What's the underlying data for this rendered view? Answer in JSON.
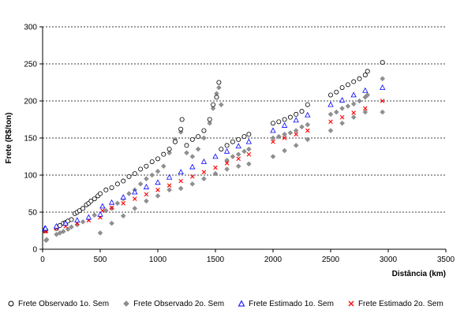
{
  "chart_data": {
    "type": "scatter",
    "title": "",
    "xlabel": "Distância (km)",
    "ylabel": "Frete (R$/ton)",
    "xlim": [
      0,
      3500
    ],
    "ylim": [
      0,
      300
    ],
    "xticks": [
      0,
      500,
      1000,
      1500,
      2000,
      2500,
      3000,
      3500
    ],
    "yticks": [
      0,
      50,
      100,
      150,
      200,
      250,
      300
    ],
    "grid": "horizontal dashed",
    "legend_position": "bottom",
    "series": [
      {
        "name": "Frete Observado 1o. Sem",
        "marker": "circle-open",
        "color": "#000000",
        "points": [
          [
            20,
            25
          ],
          [
            25,
            26
          ],
          [
            120,
            28
          ],
          [
            150,
            32
          ],
          [
            180,
            35
          ],
          [
            200,
            36
          ],
          [
            220,
            38
          ],
          [
            250,
            40
          ],
          [
            280,
            48
          ],
          [
            300,
            50
          ],
          [
            320,
            52
          ],
          [
            350,
            55
          ],
          [
            380,
            60
          ],
          [
            400,
            62
          ],
          [
            420,
            65
          ],
          [
            450,
            68
          ],
          [
            480,
            72
          ],
          [
            500,
            75
          ],
          [
            550,
            80
          ],
          [
            600,
            83
          ],
          [
            650,
            88
          ],
          [
            700,
            92
          ],
          [
            750,
            98
          ],
          [
            800,
            102
          ],
          [
            850,
            108
          ],
          [
            900,
            112
          ],
          [
            950,
            118
          ],
          [
            1000,
            122
          ],
          [
            1050,
            128
          ],
          [
            1100,
            135
          ],
          [
            1150,
            145
          ],
          [
            1200,
            162
          ],
          [
            1210,
            175
          ],
          [
            1250,
            140
          ],
          [
            1300,
            148
          ],
          [
            1350,
            152
          ],
          [
            1400,
            160
          ],
          [
            1450,
            175
          ],
          [
            1480,
            195
          ],
          [
            1510,
            205
          ],
          [
            1530,
            225
          ],
          [
            1550,
            135
          ],
          [
            1600,
            140
          ],
          [
            1650,
            145
          ],
          [
            1700,
            148
          ],
          [
            1750,
            152
          ],
          [
            1790,
            155
          ],
          [
            2000,
            170
          ],
          [
            2050,
            172
          ],
          [
            2100,
            175
          ],
          [
            2150,
            178
          ],
          [
            2200,
            182
          ],
          [
            2250,
            186
          ],
          [
            2300,
            195
          ],
          [
            2500,
            208
          ],
          [
            2550,
            212
          ],
          [
            2600,
            218
          ],
          [
            2650,
            222
          ],
          [
            2700,
            226
          ],
          [
            2750,
            230
          ],
          [
            2800,
            235
          ],
          [
            2820,
            240
          ],
          [
            2950,
            252
          ]
        ]
      },
      {
        "name": "Frete Observado 2o. Sem",
        "marker": "diamond",
        "color": "#909090",
        "points": [
          [
            30,
            12
          ],
          [
            35,
            13
          ],
          [
            120,
            20
          ],
          [
            150,
            22
          ],
          [
            180,
            24
          ],
          [
            220,
            27
          ],
          [
            250,
            30
          ],
          [
            300,
            33
          ],
          [
            350,
            37
          ],
          [
            400,
            41
          ],
          [
            450,
            46
          ],
          [
            500,
            45
          ],
          [
            550,
            52
          ],
          [
            600,
            55
          ],
          [
            650,
            62
          ],
          [
            700,
            68
          ],
          [
            750,
            75
          ],
          [
            800,
            80
          ],
          [
            850,
            88
          ],
          [
            900,
            95
          ],
          [
            950,
            100
          ],
          [
            1000,
            105
          ],
          [
            1050,
            112
          ],
          [
            1100,
            130
          ],
          [
            1150,
            148
          ],
          [
            1200,
            158
          ],
          [
            1250,
            130
          ],
          [
            1300,
            125
          ],
          [
            1350,
            135
          ],
          [
            1400,
            150
          ],
          [
            1450,
            170
          ],
          [
            1480,
            190
          ],
          [
            1510,
            210
          ],
          [
            1530,
            218
          ],
          [
            1550,
            195
          ],
          [
            1600,
            120
          ],
          [
            1650,
            125
          ],
          [
            1700,
            128
          ],
          [
            1750,
            132
          ],
          [
            1790,
            135
          ],
          [
            2000,
            150
          ],
          [
            2050,
            152
          ],
          [
            2100,
            155
          ],
          [
            2150,
            157
          ],
          [
            2200,
            160
          ],
          [
            2250,
            165
          ],
          [
            2300,
            168
          ],
          [
            2500,
            182
          ],
          [
            2550,
            185
          ],
          [
            2600,
            190
          ],
          [
            2650,
            193
          ],
          [
            2700,
            196
          ],
          [
            2750,
            200
          ],
          [
            2800,
            205
          ],
          [
            2820,
            208
          ],
          [
            2950,
            230
          ],
          [
            500,
            22
          ],
          [
            600,
            35
          ],
          [
            700,
            45
          ],
          [
            800,
            55
          ],
          [
            900,
            65
          ],
          [
            1000,
            72
          ],
          [
            1100,
            80
          ],
          [
            1200,
            82
          ],
          [
            1300,
            88
          ],
          [
            1400,
            95
          ],
          [
            1500,
            102
          ],
          [
            1600,
            108
          ],
          [
            1700,
            112
          ],
          [
            1790,
            115
          ],
          [
            2000,
            125
          ],
          [
            2100,
            133
          ],
          [
            2200,
            140
          ],
          [
            2300,
            148
          ],
          [
            2500,
            160
          ],
          [
            2600,
            170
          ],
          [
            2700,
            178
          ],
          [
            2800,
            185
          ],
          [
            2950,
            185
          ]
        ]
      },
      {
        "name": "Frete Estimado 1o. Sem",
        "marker": "triangle-open",
        "color": "#0000ff",
        "points": [
          [
            20,
            28
          ],
          [
            25,
            28
          ],
          [
            120,
            31
          ],
          [
            200,
            35
          ],
          [
            300,
            39
          ],
          [
            400,
            43
          ],
          [
            500,
            47
          ],
          [
            520,
            58
          ],
          [
            600,
            63
          ],
          [
            700,
            70
          ],
          [
            800,
            77
          ],
          [
            900,
            84
          ],
          [
            1000,
            90
          ],
          [
            1100,
            97
          ],
          [
            1200,
            104
          ],
          [
            1300,
            111
          ],
          [
            1400,
            118
          ],
          [
            1500,
            125
          ],
          [
            1600,
            132
          ],
          [
            1700,
            139
          ],
          [
            1790,
            145
          ],
          [
            2000,
            160
          ],
          [
            2100,
            167
          ],
          [
            2200,
            174
          ],
          [
            2300,
            181
          ],
          [
            2500,
            195
          ],
          [
            2600,
            201
          ],
          [
            2700,
            208
          ],
          [
            2800,
            214
          ],
          [
            2950,
            218
          ]
        ]
      },
      {
        "name": "Frete Estimado 2o. Sem",
        "marker": "x",
        "color": "#ff0000",
        "points": [
          [
            25,
            24
          ],
          [
            30,
            25
          ],
          [
            120,
            28
          ],
          [
            200,
            31
          ],
          [
            300,
            35
          ],
          [
            400,
            39
          ],
          [
            500,
            43
          ],
          [
            520,
            52
          ],
          [
            600,
            56
          ],
          [
            700,
            62
          ],
          [
            800,
            68
          ],
          [
            900,
            74
          ],
          [
            1000,
            80
          ],
          [
            1100,
            86
          ],
          [
            1200,
            92
          ],
          [
            1300,
            98
          ],
          [
            1400,
            104
          ],
          [
            1500,
            110
          ],
          [
            1600,
            116
          ],
          [
            1700,
            122
          ],
          [
            1790,
            128
          ],
          [
            2000,
            145
          ],
          [
            2100,
            150
          ],
          [
            2200,
            155
          ],
          [
            2300,
            160
          ],
          [
            2500,
            172
          ],
          [
            2600,
            178
          ],
          [
            2700,
            184
          ],
          [
            2800,
            190
          ],
          [
            2950,
            200
          ]
        ]
      }
    ]
  }
}
